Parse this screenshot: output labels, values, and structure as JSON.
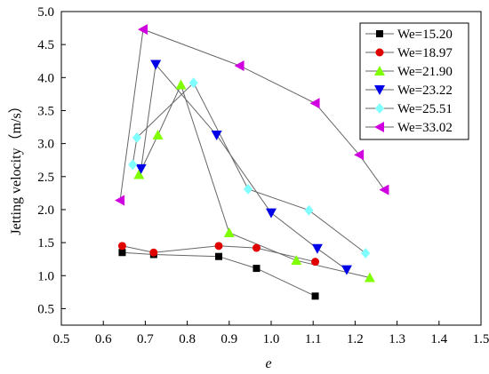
{
  "chart_data": {
    "type": "scatter",
    "xlabel": "e",
    "ylabel": "Jetting velocity（m/s）",
    "xlim": [
      0.5,
      1.5
    ],
    "ylim": [
      0.25,
      5.0
    ],
    "xticks": [
      "0.5",
      "0.6",
      "0.7",
      "0.8",
      "0.9",
      "1.0",
      "1.1",
      "1.2",
      "1.3",
      "1.4",
      "1.5"
    ],
    "yticks": [
      "0.5",
      "1.0",
      "1.5",
      "2.0",
      "2.5",
      "3.0",
      "3.5",
      "4.0",
      "4.5",
      "5.0"
    ],
    "grid": false,
    "legend_position": "top-right",
    "series": [
      {
        "name": "We=15.20",
        "marker": "square",
        "color": "#000000",
        "points": [
          [
            0.645,
            1.35
          ],
          [
            0.72,
            1.32
          ],
          [
            0.875,
            1.29
          ],
          [
            0.965,
            1.11
          ],
          [
            1.105,
            0.69
          ]
        ]
      },
      {
        "name": "We=18.97",
        "marker": "circle",
        "color": "#e00000",
        "points": [
          [
            0.645,
            1.45
          ],
          [
            0.72,
            1.35
          ],
          [
            0.875,
            1.45
          ],
          [
            0.965,
            1.42
          ],
          [
            1.105,
            1.21
          ]
        ]
      },
      {
        "name": "We=21.90",
        "marker": "triangle-up",
        "color": "#80ff00",
        "points": [
          [
            0.685,
            2.53
          ],
          [
            0.73,
            3.13
          ],
          [
            0.785,
            3.89
          ],
          [
            0.9,
            1.65
          ],
          [
            1.06,
            1.23
          ],
          [
            1.235,
            0.97
          ]
        ]
      },
      {
        "name": "We=23.22",
        "marker": "triangle-down",
        "color": "#0000e8",
        "points": [
          [
            0.69,
            2.62
          ],
          [
            0.725,
            4.2
          ],
          [
            0.87,
            3.13
          ],
          [
            1.0,
            1.95
          ],
          [
            1.11,
            1.41
          ],
          [
            1.18,
            1.09
          ]
        ]
      },
      {
        "name": "We=25.51",
        "marker": "diamond",
        "color": "#80ffff",
        "points": [
          [
            0.67,
            2.68
          ],
          [
            0.68,
            3.09
          ],
          [
            0.815,
            3.92
          ],
          [
            0.945,
            2.31
          ],
          [
            1.09,
            1.99
          ],
          [
            1.225,
            1.34
          ]
        ]
      },
      {
        "name": "We=33.02",
        "marker": "triangle-left",
        "color": "#d000e0",
        "points": [
          [
            0.64,
            2.14
          ],
          [
            0.695,
            4.73
          ],
          [
            0.925,
            4.18
          ],
          [
            1.105,
            3.61
          ],
          [
            1.21,
            2.83
          ],
          [
            1.27,
            2.3
          ]
        ]
      }
    ]
  }
}
